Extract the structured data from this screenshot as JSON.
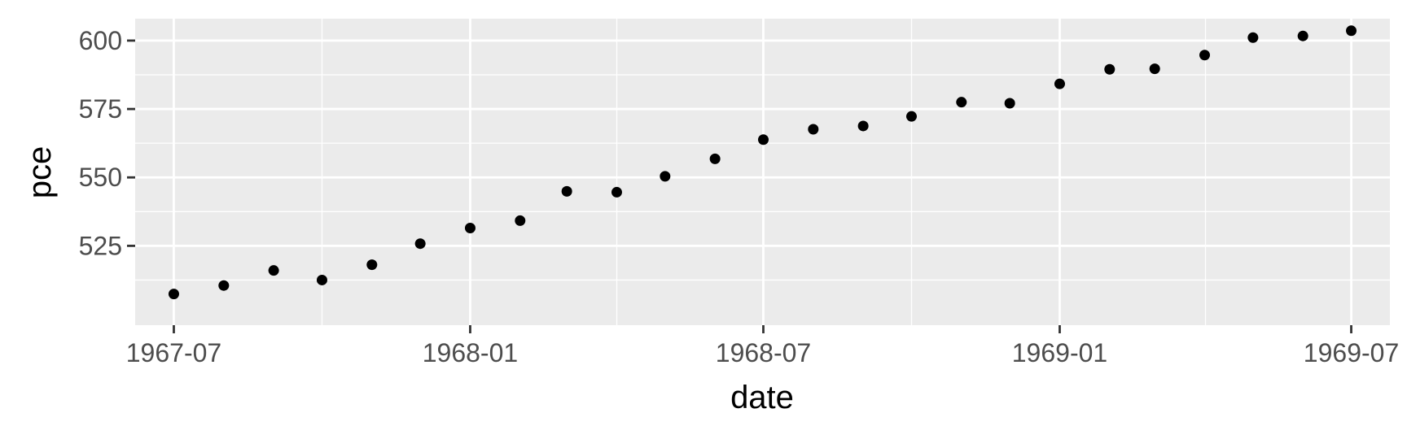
{
  "chart_data": {
    "type": "scatter",
    "title": "",
    "xlabel": "date",
    "ylabel": "pce",
    "x_axis_type": "date",
    "xlim": [
      "1967-06-07",
      "1969-07-25"
    ],
    "ylim": [
      496,
      608
    ],
    "x_ticks": [
      "1967-07",
      "1968-01",
      "1968-07",
      "1969-01",
      "1969-07"
    ],
    "y_ticks": [
      525,
      550,
      575,
      600
    ],
    "grid": true,
    "legend": "none",
    "colors": {
      "panel": "#ebebeb",
      "grid": "#ffffff",
      "points": "#000000",
      "tick_text": "#4d4d4d"
    },
    "points": [
      {
        "x": "1967-07-01",
        "y": 507.4
      },
      {
        "x": "1967-08-01",
        "y": 510.5
      },
      {
        "x": "1967-09-01",
        "y": 516.0
      },
      {
        "x": "1967-10-01",
        "y": 512.5
      },
      {
        "x": "1967-11-01",
        "y": 518.1
      },
      {
        "x": "1967-12-01",
        "y": 525.8
      },
      {
        "x": "1968-01-01",
        "y": 531.5
      },
      {
        "x": "1968-02-01",
        "y": 534.2
      },
      {
        "x": "1968-03-01",
        "y": 544.9
      },
      {
        "x": "1968-04-01",
        "y": 544.6
      },
      {
        "x": "1968-05-01",
        "y": 550.4
      },
      {
        "x": "1968-06-01",
        "y": 556.8
      },
      {
        "x": "1968-07-01",
        "y": 563.8
      },
      {
        "x": "1968-08-01",
        "y": 567.6
      },
      {
        "x": "1968-09-01",
        "y": 568.8
      },
      {
        "x": "1968-10-01",
        "y": 572.3
      },
      {
        "x": "1968-11-01",
        "y": 577.5
      },
      {
        "x": "1968-12-01",
        "y": 577.1
      },
      {
        "x": "1969-01-01",
        "y": 584.2
      },
      {
        "x": "1969-02-01",
        "y": 589.5
      },
      {
        "x": "1969-03-01",
        "y": 589.7
      },
      {
        "x": "1969-04-01",
        "y": 594.7
      },
      {
        "x": "1969-05-01",
        "y": 601.1
      },
      {
        "x": "1969-06-01",
        "y": 601.7
      },
      {
        "x": "1969-07-01",
        "y": 603.6
      }
    ]
  }
}
